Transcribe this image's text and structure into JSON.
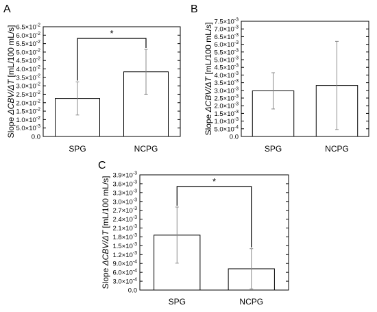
{
  "chart_data": [
    {
      "type": "bar",
      "panel_label": "A",
      "categories": [
        "SPG",
        "NCPG"
      ],
      "values": [
        0.0225,
        0.0383
      ],
      "error": [
        0.0098,
        0.0133
      ],
      "ylabel_prefix": "Slope",
      "ylabel_italic": "ΔCBV/ΔT",
      "ylabel_units": "[mL/100 mL/s]",
      "ylim": [
        0,
        0.065
      ],
      "yticks": [
        {
          "v": 0.065,
          "m": "6.5×10",
          "e": "-2"
        },
        {
          "v": 0.06,
          "m": "6.0×10",
          "e": "-2"
        },
        {
          "v": 0.055,
          "m": "5.5×10",
          "e": "-2"
        },
        {
          "v": 0.05,
          "m": "5.0×10",
          "e": "-2"
        },
        {
          "v": 0.045,
          "m": "4.5×10",
          "e": "-2"
        },
        {
          "v": 0.04,
          "m": "4.0×10",
          "e": "-2"
        },
        {
          "v": 0.035,
          "m": "3.5×10",
          "e": "-2"
        },
        {
          "v": 0.03,
          "m": "3.0×10",
          "e": "-2"
        },
        {
          "v": 0.025,
          "m": "2.5×10",
          "e": "-2"
        },
        {
          "v": 0.02,
          "m": "2.0×10",
          "e": "-2"
        },
        {
          "v": 0.015,
          "m": "1.5×10",
          "e": "-2"
        },
        {
          "v": 0.01,
          "m": "1.0×10",
          "e": "-2"
        },
        {
          "v": 0.005,
          "m": "5.0×10",
          "e": "-3"
        },
        {
          "v": 0,
          "m": "0.0",
          "e": ""
        }
      ],
      "significance": {
        "marker": "*",
        "between": [
          0,
          1
        ]
      }
    },
    {
      "type": "bar",
      "panel_label": "B",
      "categories": [
        "SPG",
        "NCPG"
      ],
      "values": [
        0.00297,
        0.00332
      ],
      "error": [
        0.00118,
        0.00287
      ],
      "ylabel_prefix": "Slope",
      "ylabel_italic": "ΔCBV/ΔT",
      "ylabel_units": "[mL/100 mL/s]",
      "ylim": [
        0,
        0.0075
      ],
      "yticks": [
        {
          "v": 0.0075,
          "m": "7.5×10",
          "e": "-3"
        },
        {
          "v": 0.007,
          "m": "7.0×10",
          "e": "-3"
        },
        {
          "v": 0.0065,
          "m": "6.5×10",
          "e": "-3"
        },
        {
          "v": 0.006,
          "m": "6.0×10",
          "e": "-3"
        },
        {
          "v": 0.0055,
          "m": "5.5×10",
          "e": "-3"
        },
        {
          "v": 0.005,
          "m": "5.0×10",
          "e": "-3"
        },
        {
          "v": 0.0045,
          "m": "4.5×10",
          "e": "-3"
        },
        {
          "v": 0.004,
          "m": "4.0×10",
          "e": "-3"
        },
        {
          "v": 0.0035,
          "m": "3.5×10",
          "e": "-3"
        },
        {
          "v": 0.003,
          "m": "3.0×10",
          "e": "-3"
        },
        {
          "v": 0.0025,
          "m": "2.5×10",
          "e": "-3"
        },
        {
          "v": 0.002,
          "m": "2.0×10",
          "e": "-3"
        },
        {
          "v": 0.0015,
          "m": "1.5×10",
          "e": "-3"
        },
        {
          "v": 0.001,
          "m": "1.0×10",
          "e": "-3"
        },
        {
          "v": 0.0005,
          "m": "5.0×10",
          "e": "-4"
        },
        {
          "v": 0,
          "m": "0.0",
          "e": ""
        }
      ],
      "significance": null
    },
    {
      "type": "bar",
      "panel_label": "C",
      "categories": [
        "SPG",
        "NCPG"
      ],
      "values": [
        0.00186,
        0.00072
      ],
      "error": [
        0.00095,
        0.00068
      ],
      "ylabel_prefix": "Slope",
      "ylabel_italic": "ΔCBV/ΔT",
      "ylabel_units": "[mL/100 mL/s]",
      "ylim": [
        0,
        0.0039
      ],
      "yticks": [
        {
          "v": 0.0039,
          "m": "3.9×10",
          "e": "-3"
        },
        {
          "v": 0.0036,
          "m": "3.6×10",
          "e": "-3"
        },
        {
          "v": 0.0033,
          "m": "3.3×10",
          "e": "-3"
        },
        {
          "v": 0.003,
          "m": "3.0×10",
          "e": "-3"
        },
        {
          "v": 0.0027,
          "m": "2.7×10",
          "e": "-3"
        },
        {
          "v": 0.0024,
          "m": "2.4×10",
          "e": "-3"
        },
        {
          "v": 0.0021,
          "m": "2.1×10",
          "e": "-3"
        },
        {
          "v": 0.0018,
          "m": "1.8×10",
          "e": "-3"
        },
        {
          "v": 0.0015,
          "m": "1.5×10",
          "e": "-3"
        },
        {
          "v": 0.0012,
          "m": "1.2×10",
          "e": "-3"
        },
        {
          "v": 0.0009,
          "m": "9.0×10",
          "e": "-4"
        },
        {
          "v": 0.0006,
          "m": "6.0×10",
          "e": "-4"
        },
        {
          "v": 0.0003,
          "m": "3.0×10",
          "e": "-4"
        },
        {
          "v": 0,
          "m": "0.0",
          "e": ""
        }
      ],
      "significance": {
        "marker": "*",
        "between": [
          0,
          1
        ]
      }
    }
  ]
}
